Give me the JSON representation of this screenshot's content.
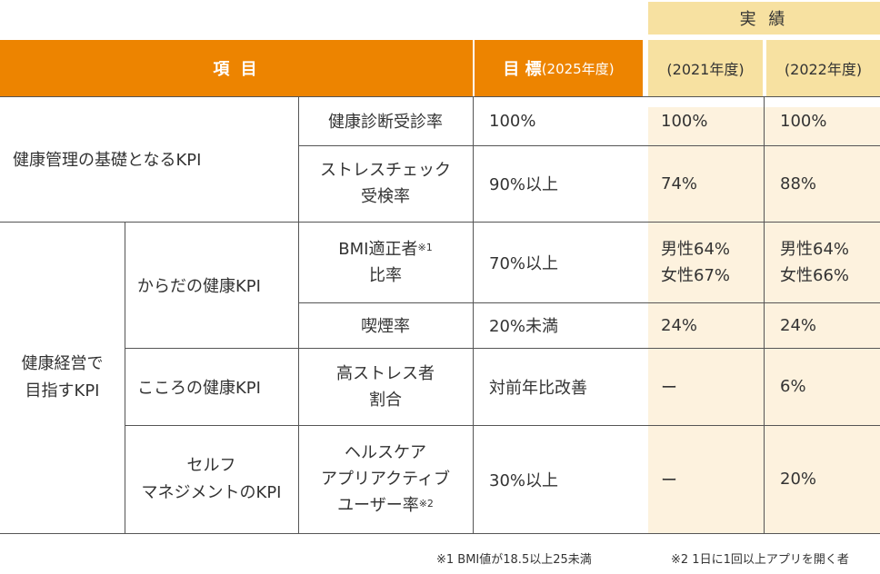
{
  "header": {
    "results_label": "実 績",
    "item_label": "項 目",
    "target_label": "目 標",
    "target_year": "(2025年度)",
    "year_2021": "(2021年度)",
    "year_2022": "(2022年度)"
  },
  "rows": {
    "basic_group": "健康管理の基礎となるKPI",
    "r1": {
      "item": "健康診断受診率",
      "target": "100%",
      "y2021": "100%",
      "y2022": "100%"
    },
    "r2": {
      "item": "ストレスチェック\n受検率",
      "target": "90%以上",
      "y2021": "74%",
      "y2022": "88%"
    },
    "mgmt_group": "健康経営で\n目指すKPI",
    "body_group": "からだの健康KPI",
    "r3": {
      "item_line1": "BMI適正者",
      "item_sup": "※1",
      "item_line2": "比率",
      "target": "70%以上",
      "y2021": "男性64%\n女性67%",
      "y2022": "男性64%\n女性66%"
    },
    "r4": {
      "item": "喫煙率",
      "target": "20%未満",
      "y2021": "24%",
      "y2022": "24%"
    },
    "mind_group": "こころの健康KPI",
    "r5": {
      "item": "高ストレス者\n割合",
      "target": "対前年比改善",
      "y2021": "ー",
      "y2022": "6%"
    },
    "self_group": "セルフ\nマネジメントのKPI",
    "r6": {
      "item_line1": "ヘルスケア",
      "item_line2": "アプリアクティブ",
      "item_line3": "ユーザー率",
      "item_sup": "※2",
      "target": "30%以上",
      "y2021": "ー",
      "y2022": "20%"
    }
  },
  "footnotes": {
    "note1": "※1 BMI値が18.5以上25未満",
    "note2": "※2 1日に1回以上アプリを開く者"
  },
  "colors": {
    "header_orange": "#ed8400",
    "header_tan": "#f7e1a1",
    "results_bg": "#fdf2de"
  }
}
